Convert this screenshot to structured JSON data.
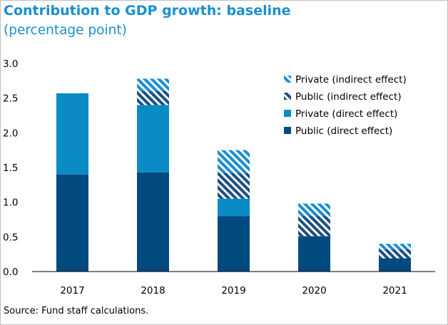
{
  "chart_data": {
    "type": "bar",
    "stacked": true,
    "title": "Contribution to GDP growth: baseline",
    "subtitle": "(percentage point)",
    "xlabel": "",
    "ylabel": "",
    "categories": [
      "2017",
      "2018",
      "2019",
      "2020",
      "2021"
    ],
    "ylim": [
      0,
      3.0
    ],
    "yticks": [
      "0.0",
      "0.5",
      "1.0",
      "1.5",
      "2.0",
      "2.5",
      "3.0"
    ],
    "grid": false,
    "legend_position": "top-right",
    "series": [
      {
        "name": "Public (direct effect)",
        "values": [
          1.4,
          1.43,
          0.8,
          0.51,
          0.19
        ],
        "color": "#004a80",
        "pattern": "solid"
      },
      {
        "name": "Private (direct effect)",
        "values": [
          1.17,
          0.97,
          0.25,
          0.0,
          0.0
        ],
        "color": "#0a8bc6",
        "pattern": "solid"
      },
      {
        "name": "Public (indirect effect)",
        "values": [
          0.0,
          0.2,
          0.37,
          0.29,
          0.13
        ],
        "color": "#1b4f80",
        "pattern": "diagonal-stripes"
      },
      {
        "name": "Private (indirect effect)",
        "values": [
          0.0,
          0.18,
          0.33,
          0.18,
          0.08
        ],
        "color": "#1a8fd0",
        "pattern": "diagonal-stripes"
      }
    ],
    "legend_order": [
      3,
      2,
      1,
      0
    ]
  },
  "source": "Source: Fund staff calculations."
}
